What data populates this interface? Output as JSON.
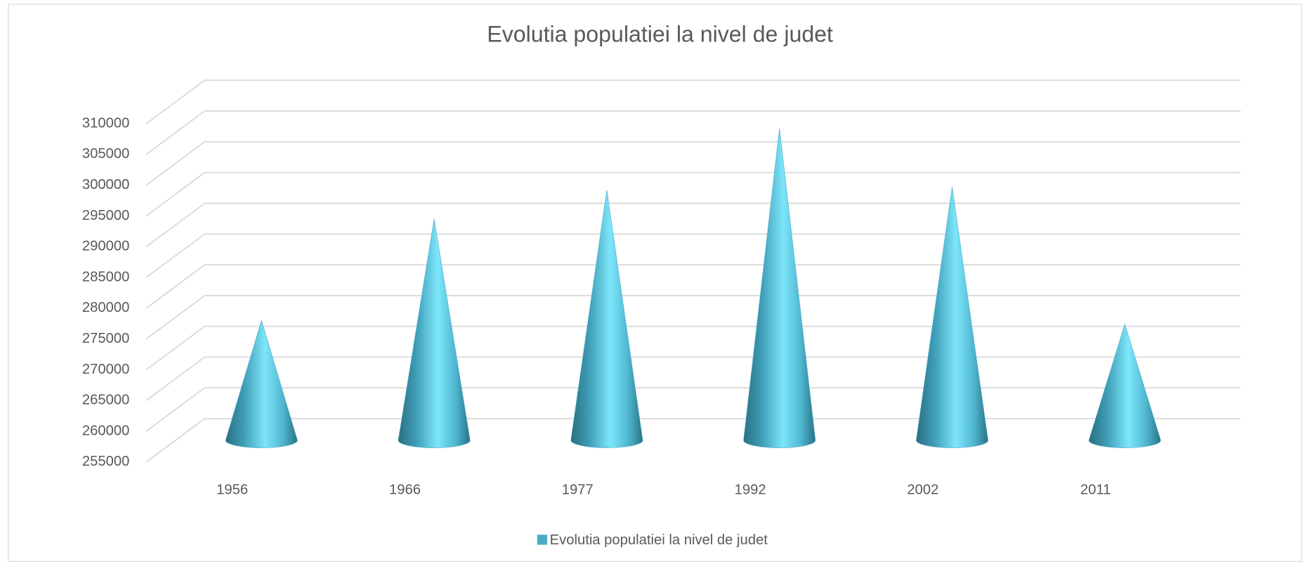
{
  "chart_data": {
    "type": "cone",
    "title": "Evolutia populatiei la nivel de judet",
    "categories": [
      "1956",
      "1966",
      "1977",
      "1992",
      "2002",
      "2011"
    ],
    "series": [
      {
        "name": "Evolutia populatiei la nivel de judet",
        "color": "#4bacc6",
        "values": [
          274500,
          291000,
          295700,
          305700,
          296200,
          273900
        ]
      }
    ],
    "ylim": [
      255000,
      310000
    ],
    "yticks": [
      255000,
      260000,
      265000,
      270000,
      275000,
      280000,
      285000,
      290000,
      295000,
      300000,
      305000,
      310000
    ],
    "grid": true,
    "legend": "bottom"
  }
}
